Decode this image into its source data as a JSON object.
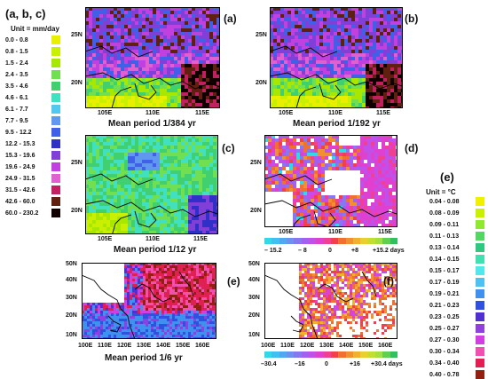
{
  "legend_left": {
    "title": "(a, b, c)",
    "unit": "Unit = mm/day",
    "entries": [
      {
        "range": "0.0 -  0.8",
        "color": "#e8f000"
      },
      {
        "range": "0.8 -  1.5",
        "color": "#c8f000"
      },
      {
        "range": "1.5 -  2.4",
        "color": "#a8e800"
      },
      {
        "range": "2.4 -  3.5",
        "color": "#70e050"
      },
      {
        "range": "3.5 -  4.6",
        "color": "#40d070"
      },
      {
        "range": "4.6 -  6.1",
        "color": "#40e0c0"
      },
      {
        "range": "6.1 -  7.7",
        "color": "#50c8f0"
      },
      {
        "range": "7.7 -  9.5",
        "color": "#6098f0"
      },
      {
        "range": "9.5 -  12.2",
        "color": "#4060e8"
      },
      {
        "range": "12.2 -  15.3",
        "color": "#3030c8"
      },
      {
        "range": "15.3 -  19.6",
        "color": "#8040d8"
      },
      {
        "range": "19.6 -  24.9",
        "color": "#c040e0"
      },
      {
        "range": "24.9 -  31.5",
        "color": "#e060d0"
      },
      {
        "range": "31.5 -  42.6",
        "color": "#c02060"
      },
      {
        "range": "42.6 -  60.0",
        "color": "#602010"
      },
      {
        "range": "60.0 -  230.2",
        "color": "#100000"
      }
    ]
  },
  "legend_right": {
    "title": "(e)",
    "unit": "Unit = °C",
    "entries": [
      {
        "range": "0.04 -  0.08",
        "color": "#f0f000"
      },
      {
        "range": "0.08 -  0.09",
        "color": "#c8f000"
      },
      {
        "range": "0.09 -  0.11",
        "color": "#90e830"
      },
      {
        "range": "0.11 -  0.13",
        "color": "#50d860"
      },
      {
        "range": "0.13 -  0.14",
        "color": "#30c880"
      },
      {
        "range": "0.14 -  0.15",
        "color": "#40e0b0"
      },
      {
        "range": "0.15 -  0.17",
        "color": "#50e8e8"
      },
      {
        "range": "0.17 -  0.19",
        "color": "#50c0f0"
      },
      {
        "range": "0.19 -  0.21",
        "color": "#4090f0"
      },
      {
        "range": "0.21 -  0.23",
        "color": "#3050e0"
      },
      {
        "range": "0.23 -  0.25",
        "color": "#5030d0"
      },
      {
        "range": "0.25 -  0.27",
        "color": "#9040e0"
      },
      {
        "range": "0.27 -  0.30",
        "color": "#d040e0"
      },
      {
        "range": "0.30 -  0.34",
        "color": "#f050b0"
      },
      {
        "range": "0.34 -  0.40",
        "color": "#e02050"
      },
      {
        "range": "0.40 -  0.78",
        "color": "#902010"
      }
    ]
  },
  "panels": {
    "a": {
      "label": "(a)",
      "title": "Mean period   1/384 yr",
      "lat_ticks": [
        "25N",
        "20N"
      ],
      "lon_ticks": [
        "105E",
        "110E",
        "115E"
      ]
    },
    "b": {
      "label": "(b)",
      "title": "Mean period   1/192 yr",
      "lat_ticks": [
        "25N",
        "20N"
      ],
      "lon_ticks": [
        "105E",
        "110E",
        "115E"
      ]
    },
    "c": {
      "label": "(c)",
      "title": "Mean period  1/12 yr",
      "lat_ticks": [
        "25N",
        "20N"
      ],
      "lon_ticks": [
        "105E",
        "110E",
        "115E"
      ]
    },
    "d": {
      "label": "(d)",
      "lat_ticks": [
        "25N",
        "20N"
      ],
      "lon_ticks": [
        "105E",
        "110E",
        "115E"
      ],
      "colorbar_labels": [
        "– 15.2",
        "– 8",
        "0",
        "+8",
        "+15.2 days"
      ]
    },
    "e": {
      "label": "(e)",
      "title": "Mean period  1/6 yr",
      "lat_ticks": [
        "50N",
        "40N",
        "30N",
        "20N",
        "10N"
      ],
      "lon_ticks": [
        "100E",
        "110E",
        "120E",
        "130E",
        "140E",
        "150E",
        "160E"
      ]
    },
    "f": {
      "label": "(f)",
      "lat_ticks": [
        "50N",
        "40N",
        "30N",
        "20N",
        "10N"
      ],
      "lon_ticks": [
        "100E",
        "110E",
        "120E",
        "130E",
        "140E",
        "150E",
        "160E"
      ],
      "colorbar_labels": [
        "–30.4",
        "–16",
        "0",
        "+16",
        "+30.4 days"
      ]
    }
  },
  "diverging_colors": [
    "#30d8e8",
    "#40c0f0",
    "#50a8f0",
    "#7090f0",
    "#8878f0",
    "#a060f0",
    "#c050e8",
    "#e040d0",
    "#f04090",
    "#f04050",
    "#f07030",
    "#f09030",
    "#f0b030",
    "#e8d030",
    "#c0e030",
    "#a0e040",
    "#60d050",
    "#30c060"
  ]
}
